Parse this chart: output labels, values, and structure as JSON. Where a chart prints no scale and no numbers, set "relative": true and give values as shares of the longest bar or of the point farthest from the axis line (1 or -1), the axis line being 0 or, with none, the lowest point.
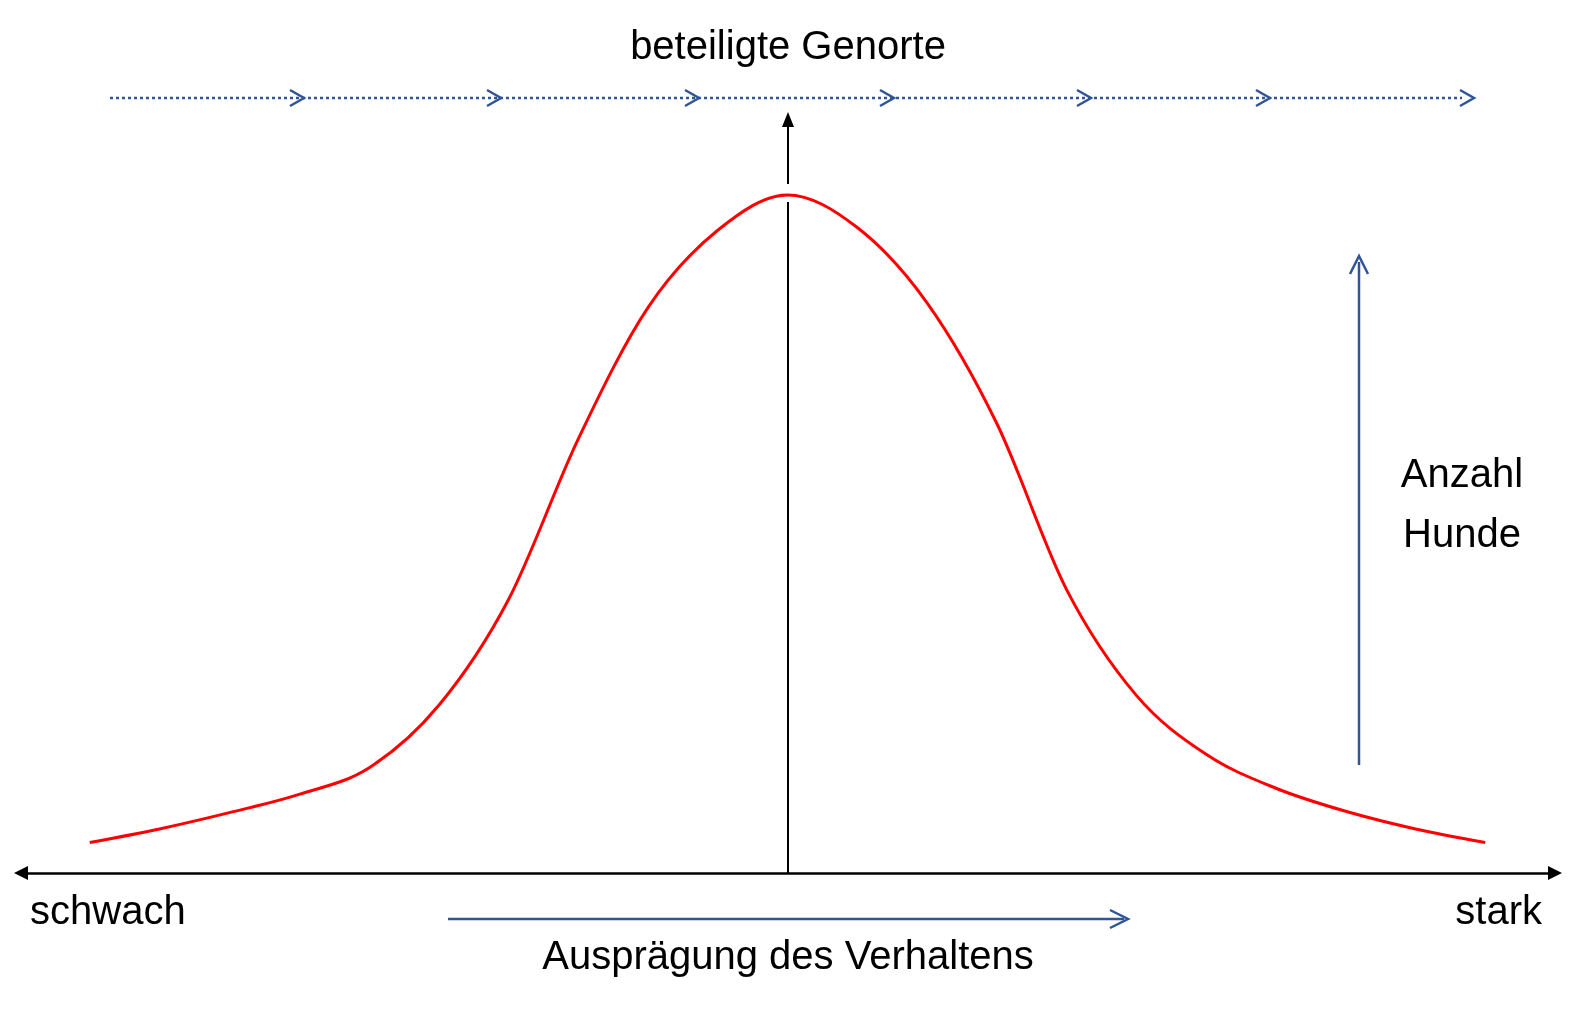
{
  "chart_data": {
    "type": "line",
    "title": "beteiligte Genorte",
    "xlabel": "Ausprägung des Verhaltens",
    "ylabel": "Anzahl Hunde",
    "relative": true,
    "categories": [
      null,
      null,
      null,
      null,
      null,
      null,
      null,
      null,
      null,
      null,
      null,
      null,
      null,
      null,
      null,
      null,
      null,
      null,
      null,
      null,
      null
    ],
    "series": [
      {
        "color": "#ff0000",
        "values": [
          0.045,
          0.065,
          0.089,
          0.116,
          0.155,
          0.247,
          0.403,
          0.64,
          0.834,
          0.948,
          1,
          0.952,
          0.841,
          0.663,
          0.418,
          0.262,
          0.175,
          0.125,
          0.091,
          0.065,
          0.045
        ]
      }
    ],
    "annotations": [
      "schwach",
      "stark"
    ]
  }
}
